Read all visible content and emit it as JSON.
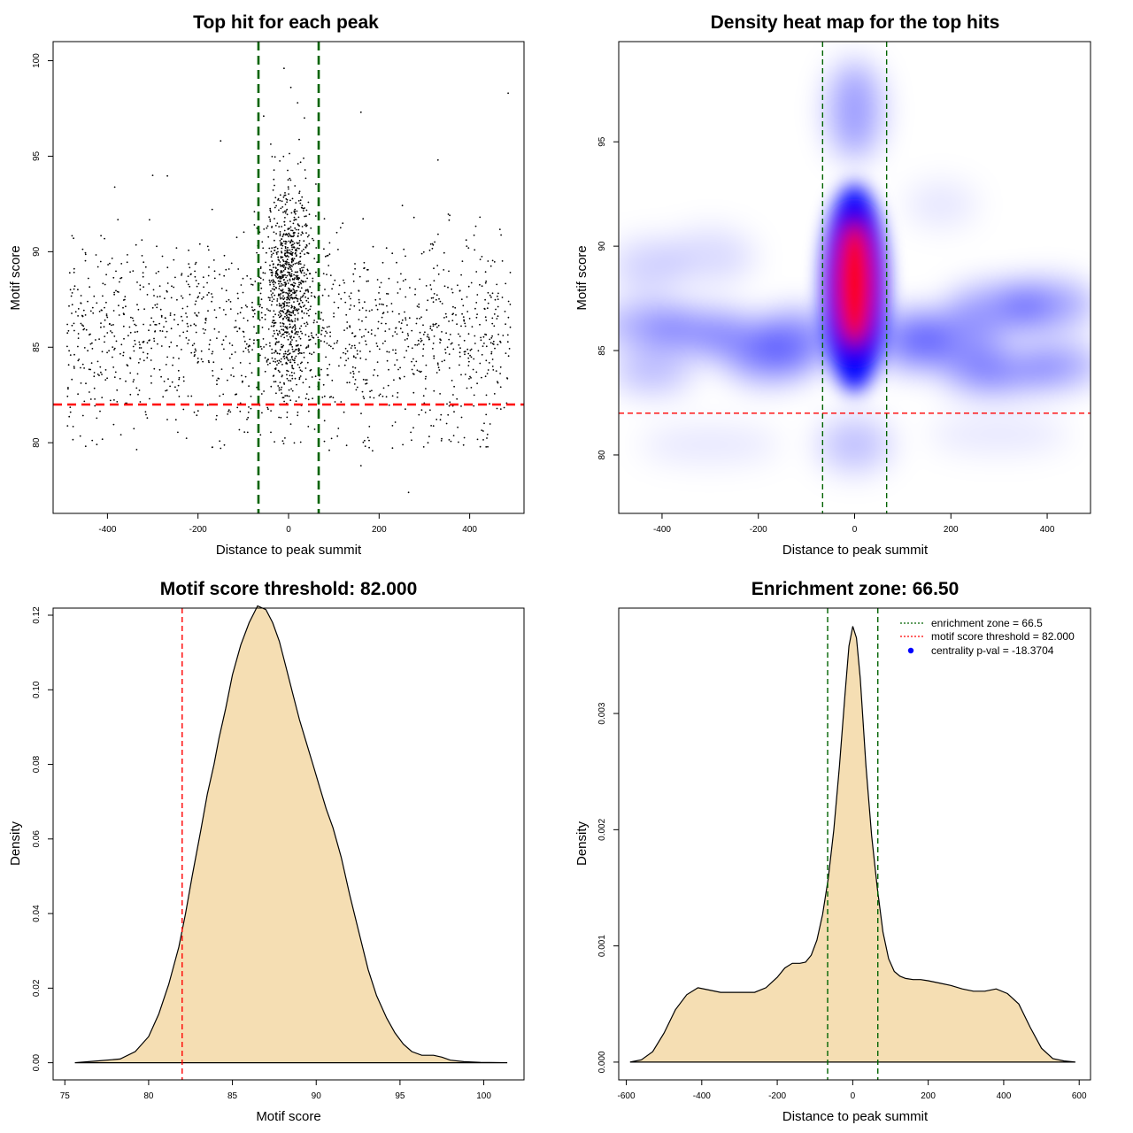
{
  "chart_data": [
    {
      "type": "scatter",
      "title": "Top hit for each peak",
      "xlabel": "Distance to peak summit",
      "ylabel": "Motif score",
      "xlim": [
        -520,
        520
      ],
      "ylim": [
        76.3,
        101.0
      ],
      "xticks": [
        -400,
        -200,
        0,
        200,
        400
      ],
      "yticks": [
        80,
        85,
        90,
        95,
        100
      ],
      "vlines": [
        -66.5,
        66.5
      ],
      "hline": 82.0,
      "line_colors": {
        "vline": "#006400",
        "hline": "#ff0000"
      },
      "point_color": "#000000",
      "points_note_hidden": ""
    },
    {
      "type": "heatmap",
      "title": "Density heat map for the top hits",
      "xlabel": "Distance to peak summit",
      "ylabel": "Motif score",
      "xlim": [
        -490,
        490
      ],
      "ylim": [
        77.2,
        99.8
      ],
      "xticks": [
        -400,
        -200,
        0,
        200,
        400
      ],
      "yticks": [
        80,
        85,
        90,
        95
      ],
      "vlines": [
        -66.5,
        66.5
      ],
      "hline": 82.0,
      "colors": [
        "#ffffff",
        "#0000ff",
        "#ff0000"
      ]
    },
    {
      "type": "area",
      "title": "Motif score threshold: 82.000",
      "xlabel": "Motif score",
      "ylabel": "Density",
      "xlim": [
        74.3,
        102.4
      ],
      "ylim": [
        -0.0046,
        0.1219
      ],
      "xticks": [
        75,
        80,
        85,
        90,
        95,
        100
      ],
      "yticks": [
        0.0,
        0.02,
        0.04,
        0.06,
        0.08,
        0.1,
        0.12
      ],
      "ytick_labels": [
        "0.00",
        "0.02",
        "0.04",
        "0.06",
        "0.08",
        "0.10",
        "0.12"
      ],
      "vline": 82.0,
      "fill": "#f5deb3",
      "x": [
        75.6,
        77.0,
        78.3,
        79.2,
        80.0,
        80.6,
        81.2,
        81.8,
        82.2,
        82.6,
        83.1,
        83.5,
        83.9,
        84.2,
        84.6,
        85.0,
        85.5,
        86.0,
        86.5,
        87.0,
        87.4,
        87.8,
        88.2,
        88.6,
        89.0,
        89.4,
        89.8,
        90.2,
        90.6,
        91.0,
        91.5,
        92.0,
        92.6,
        93.1,
        93.6,
        94.2,
        94.7,
        95.2,
        95.7,
        96.3,
        97.0,
        97.5,
        98.0,
        98.8,
        99.8,
        101.4
      ],
      "y": [
        0.0,
        0.0005,
        0.001,
        0.003,
        0.007,
        0.013,
        0.021,
        0.031,
        0.04,
        0.05,
        0.062,
        0.072,
        0.08,
        0.087,
        0.095,
        0.104,
        0.112,
        0.118,
        0.1225,
        0.1215,
        0.118,
        0.113,
        0.106,
        0.099,
        0.092,
        0.086,
        0.08,
        0.074,
        0.068,
        0.063,
        0.055,
        0.045,
        0.034,
        0.025,
        0.018,
        0.012,
        0.008,
        0.005,
        0.003,
        0.002,
        0.002,
        0.0015,
        0.0007,
        0.0003,
        0.0001,
        0.0
      ]
    },
    {
      "type": "area",
      "title": "Enrichment zone: 66.50",
      "xlabel": "Distance to peak summit",
      "ylabel": "Density",
      "xlim": [
        -620,
        630
      ],
      "ylim": [
        -0.000153,
        0.003907
      ],
      "xticks": [
        -600,
        -400,
        -200,
        0,
        200,
        400,
        600
      ],
      "yticks": [
        0.0,
        0.001,
        0.002,
        0.003
      ],
      "ytick_labels": [
        "0.000",
        "0.001",
        "0.002",
        "0.003"
      ],
      "vlines": [
        -66.5,
        66.5
      ],
      "fill": "#f5deb3",
      "x": [
        -590,
        -560,
        -530,
        -500,
        -470,
        -440,
        -410,
        -380,
        -350,
        -320,
        -290,
        -260,
        -230,
        -200,
        -180,
        -160,
        -140,
        -125,
        -110,
        -95,
        -80,
        -65,
        -50,
        -35,
        -20,
        -10,
        0,
        10,
        20,
        35,
        50,
        65,
        80,
        95,
        110,
        125,
        140,
        160,
        180,
        200,
        230,
        260,
        290,
        320,
        350,
        380,
        410,
        440,
        470,
        500,
        530,
        560,
        590
      ],
      "y": [
        0.0,
        2e-05,
        9e-05,
        0.00025,
        0.00045,
        0.00058,
        0.00064,
        0.00062,
        0.0006,
        0.0006,
        0.0006,
        0.0006,
        0.00064,
        0.00073,
        0.00081,
        0.00085,
        0.00085,
        0.00086,
        0.00092,
        0.00105,
        0.00127,
        0.00158,
        0.002,
        0.00255,
        0.00318,
        0.00358,
        0.00375,
        0.00365,
        0.0033,
        0.00255,
        0.00195,
        0.0015,
        0.00112,
        0.00089,
        0.00078,
        0.00074,
        0.00072,
        0.00071,
        0.00071,
        0.0007,
        0.00068,
        0.00066,
        0.00063,
        0.00061,
        0.00061,
        0.00063,
        0.00059,
        0.0005,
        0.0003,
        0.00012,
        3e-05,
        1e-05,
        0.0
      ],
      "legend": [
        {
          "label": "enrichment zone = 66.5",
          "color": "#006400",
          "kind": "dotted-line"
        },
        {
          "label": "motif score threshold = 82.000",
          "color": "#ff0000",
          "kind": "dotted-line"
        },
        {
          "label": "centrality p-val = -18.3704",
          "color": "#0000ff",
          "kind": "point"
        }
      ],
      "legend_position": "top-right"
    }
  ]
}
